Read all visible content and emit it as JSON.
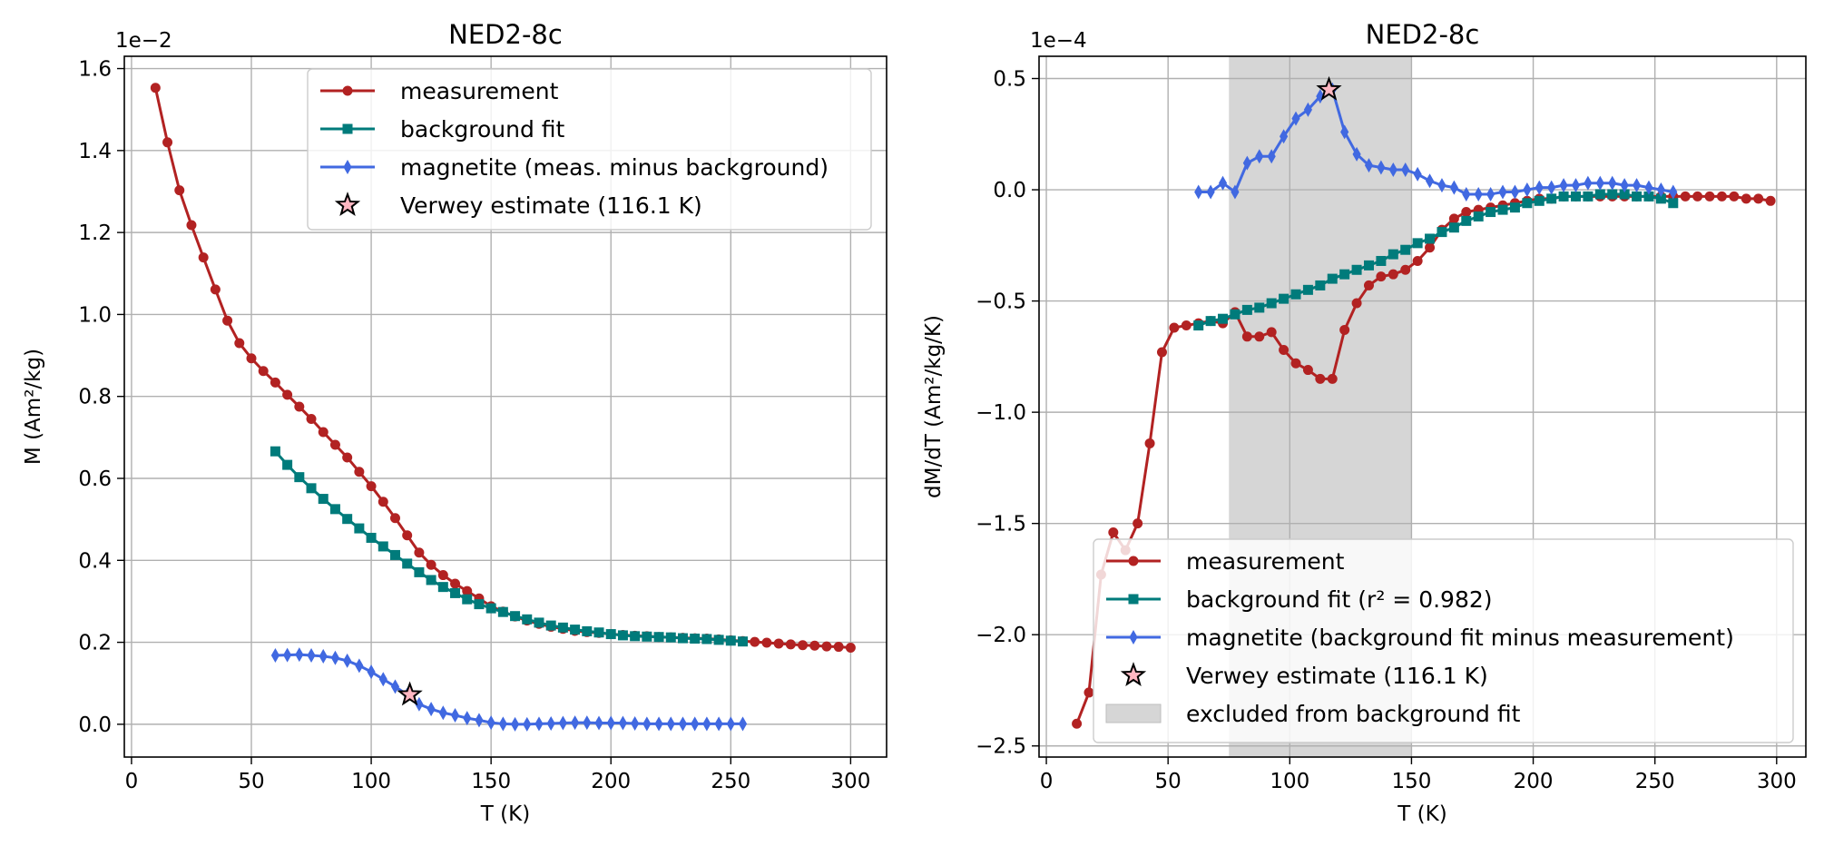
{
  "chart_data": [
    {
      "type": "line",
      "title": "NED2-8c",
      "xlabel": "T (K)",
      "ylabel": "M (Am²/kg)",
      "offset_text": "1e−2",
      "xlim": [
        -3,
        315
      ],
      "ylim": [
        -0.0008,
        0.0163
      ],
      "xticks": [
        0,
        50,
        100,
        150,
        200,
        250,
        300
      ],
      "xtick_labels": [
        "0",
        "50",
        "100",
        "150",
        "200",
        "250",
        "300"
      ],
      "yticks": [
        0,
        0.002,
        0.004,
        0.006,
        0.008,
        0.01,
        0.012,
        0.014,
        0.016
      ],
      "ytick_labels": [
        "0.0",
        "0.2",
        "0.4",
        "0.6",
        "0.8",
        "1.0",
        "1.2",
        "1.4",
        "1.6"
      ],
      "grid": true,
      "legend": {
        "location": "upper right"
      },
      "series": [
        {
          "name": "measurement",
          "color": "#b22222",
          "marker": "circle",
          "x": [
            10,
            15,
            20,
            25,
            30,
            35,
            40,
            45,
            50,
            55,
            60,
            65,
            70,
            75,
            80,
            85,
            90,
            95,
            100,
            105,
            110,
            115,
            120,
            125,
            130,
            135,
            140,
            145,
            150,
            155,
            160,
            165,
            170,
            175,
            180,
            185,
            190,
            195,
            200,
            205,
            210,
            215,
            220,
            225,
            230,
            235,
            240,
            245,
            250,
            255,
            260,
            265,
            270,
            275,
            280,
            285,
            290,
            295,
            300
          ],
          "y": [
            0.01553,
            0.0142,
            0.01303,
            0.01218,
            0.01139,
            0.01061,
            0.00985,
            0.0093,
            0.00893,
            0.00862,
            0.00834,
            0.00804,
            0.00775,
            0.00745,
            0.00713,
            0.00682,
            0.00651,
            0.00616,
            0.00581,
            0.00543,
            0.00503,
            0.00461,
            0.00419,
            0.00389,
            0.00364,
            0.00343,
            0.00325,
            0.00307,
            0.00288,
            0.00275,
            0.00263,
            0.00253,
            0.00245,
            0.00238,
            0.00233,
            0.00228,
            0.00225,
            0.00223,
            0.0022,
            0.00218,
            0.00216,
            0.00215,
            0.00213,
            0.00212,
            0.00211,
            0.0021,
            0.00209,
            0.00207,
            0.00205,
            0.00203,
            0.00201,
            0.00199,
            0.00197,
            0.00195,
            0.00193,
            0.00192,
            0.0019,
            0.00189,
            0.00187
          ]
        },
        {
          "name": "background fit",
          "color": "#007b7b",
          "marker": "square",
          "x": [
            60,
            65,
            70,
            75,
            80,
            85,
            90,
            95,
            100,
            105,
            110,
            115,
            120,
            125,
            130,
            135,
            140,
            145,
            150,
            155,
            160,
            165,
            170,
            175,
            180,
            185,
            190,
            195,
            200,
            205,
            210,
            215,
            220,
            225,
            230,
            235,
            240,
            245,
            250,
            255
          ],
          "y": [
            0.00666,
            0.00633,
            0.00603,
            0.00576,
            0.0055,
            0.00525,
            0.00501,
            0.00478,
            0.00455,
            0.00434,
            0.00413,
            0.00392,
            0.00371,
            0.00352,
            0.00335,
            0.0032,
            0.00305,
            0.00293,
            0.00283,
            0.00274,
            0.00264,
            0.00256,
            0.00248,
            0.00241,
            0.00236,
            0.00231,
            0.00227,
            0.00224,
            0.0022,
            0.00217,
            0.00215,
            0.00214,
            0.00213,
            0.00212,
            0.0021,
            0.00209,
            0.00208,
            0.00206,
            0.00204,
            0.00202
          ]
        },
        {
          "name": "magnetite (meas. minus background)",
          "color": "#4169e1",
          "marker": "thin_diamond",
          "x": [
            60,
            65,
            70,
            75,
            80,
            85,
            90,
            95,
            100,
            105,
            110,
            115,
            120,
            125,
            130,
            135,
            140,
            145,
            150,
            155,
            160,
            165,
            170,
            175,
            180,
            185,
            190,
            195,
            200,
            205,
            210,
            215,
            220,
            225,
            230,
            235,
            240,
            245,
            250,
            255
          ],
          "y": [
            0.00168,
            0.00169,
            0.0017,
            0.00168,
            0.00166,
            0.00162,
            0.00155,
            0.00143,
            0.00128,
            0.0011,
            0.00092,
            0.00072,
            0.00049,
            0.00037,
            0.00028,
            0.00022,
            0.00015,
            0.0001,
            4e-05,
            1e-05,
            0.0,
            0.0,
            1e-05,
            2e-05,
            3e-05,
            4e-05,
            4e-05,
            3e-05,
            3e-05,
            3e-05,
            2e-05,
            1e-05,
            1e-05,
            1e-05,
            1e-05,
            1e-05,
            1e-05,
            1e-05,
            1e-05,
            1e-05
          ]
        },
        {
          "name": "Verwey estimate (116.1 K)",
          "color": "#ffb6c1",
          "edgecolor": "#000000",
          "marker": "star",
          "x": [
            116.1
          ],
          "y": [
            0.00072
          ]
        }
      ]
    },
    {
      "type": "line",
      "title": "NED2-8c",
      "xlabel": "T (K)",
      "ylabel": "dM/dT (Am²/kg/K)",
      "offset_text": "1e−4",
      "xlim": [
        -3,
        312
      ],
      "ylim": [
        -2.55e-05,
        6e-06
      ],
      "xticks": [
        0,
        50,
        100,
        150,
        200,
        250,
        300
      ],
      "xtick_labels": [
        "0",
        "50",
        "100",
        "150",
        "200",
        "250",
        "300"
      ],
      "yticks": [
        -2.5e-05,
        -2e-05,
        -1.5e-05,
        -1e-05,
        -5e-06,
        0,
        5e-06
      ],
      "ytick_labels": [
        "−2.5",
        "−2.0",
        "−1.5",
        "−1.0",
        "−0.5",
        "0.0",
        "0.5"
      ],
      "grid": true,
      "legend": {
        "location": "lower right"
      },
      "shaded_span": {
        "x": [
          75,
          150
        ],
        "label": "excluded from background fit",
        "color": "#d6d6d6"
      },
      "series": [
        {
          "name": "measurement",
          "color": "#b22222",
          "marker": "circle",
          "x": [
            12.5,
            17.5,
            22.5,
            27.5,
            32.5,
            37.5,
            42.5,
            47.5,
            52.5,
            57.5,
            62.5,
            67.5,
            72.5,
            77.5,
            82.5,
            87.5,
            92.5,
            97.5,
            102.5,
            107.5,
            112.5,
            117.5,
            122.5,
            127.5,
            132.5,
            137.5,
            142.5,
            147.5,
            152.5,
            157.5,
            162.5,
            167.5,
            172.5,
            177.5,
            182.5,
            187.5,
            192.5,
            197.5,
            202.5,
            207.5,
            212.5,
            217.5,
            222.5,
            227.5,
            232.5,
            237.5,
            242.5,
            247.5,
            252.5,
            257.5,
            262.5,
            267.5,
            272.5,
            277.5,
            282.5,
            287.5,
            292.5,
            297.5
          ],
          "y": [
            -2.4e-05,
            -2.26e-05,
            -1.73e-05,
            -1.54e-05,
            -1.62e-05,
            -1.5e-05,
            -1.14e-05,
            -7.3e-06,
            -6.2e-06,
            -6.1e-06,
            -6e-06,
            -5.9e-06,
            -6e-06,
            -5.5e-06,
            -6.6e-06,
            -6.6e-06,
            -6.4e-06,
            -7.2e-06,
            -7.8e-06,
            -8.1e-06,
            -8.5e-06,
            -8.5e-06,
            -6.3e-06,
            -5.1e-06,
            -4.3e-06,
            -3.9e-06,
            -3.8e-06,
            -3.6e-06,
            -3.2e-06,
            -2.6e-06,
            -1.8e-06,
            -1.3e-06,
            -1e-06,
            -9e-07,
            -8e-07,
            -7e-07,
            -6e-07,
            -5e-07,
            -4e-07,
            -4e-07,
            -3e-07,
            -3e-07,
            -3e-07,
            -3e-07,
            -3e-07,
            -3e-07,
            -3e-07,
            -3e-07,
            -3e-07,
            -3e-07,
            -3e-07,
            -3e-07,
            -3e-07,
            -3e-07,
            -3e-07,
            -4e-07,
            -4e-07,
            -5e-07
          ]
        },
        {
          "name": "background fit (r² = 0.982)",
          "color": "#007b7b",
          "marker": "square",
          "x": [
            62.5,
            67.5,
            72.5,
            77.5,
            82.5,
            87.5,
            92.5,
            97.5,
            102.5,
            107.5,
            112.5,
            117.5,
            122.5,
            127.5,
            132.5,
            137.5,
            142.5,
            147.5,
            152.5,
            157.5,
            162.5,
            167.5,
            172.5,
            177.5,
            182.5,
            187.5,
            192.5,
            197.5,
            202.5,
            207.5,
            212.5,
            217.5,
            222.5,
            227.5,
            232.5,
            237.5,
            242.5,
            247.5,
            252.5,
            257.5
          ],
          "y": [
            -6.1e-06,
            -5.9e-06,
            -5.8e-06,
            -5.6e-06,
            -5.4e-06,
            -5.3e-06,
            -5.1e-06,
            -4.9e-06,
            -4.7e-06,
            -4.5e-06,
            -4.3e-06,
            -4e-06,
            -3.8e-06,
            -3.6e-06,
            -3.4e-06,
            -3.2e-06,
            -2.9e-06,
            -2.7e-06,
            -2.4e-06,
            -2.2e-06,
            -1.9e-06,
            -1.7e-06,
            -1.4e-06,
            -1.2e-06,
            -1e-06,
            -9e-07,
            -8e-07,
            -6e-07,
            -5e-07,
            -4e-07,
            -3e-07,
            -3e-07,
            -3e-07,
            -2e-07,
            -2e-07,
            -2e-07,
            -3e-07,
            -3e-07,
            -4e-07,
            -6e-07
          ]
        },
        {
          "name": "magnetite (background fit minus measurement)",
          "color": "#4169e1",
          "marker": "thin_diamond",
          "x": [
            62.5,
            67.5,
            72.5,
            77.5,
            82.5,
            87.5,
            92.5,
            97.5,
            102.5,
            107.5,
            112.5,
            117.5,
            122.5,
            127.5,
            132.5,
            137.5,
            142.5,
            147.5,
            152.5,
            157.5,
            162.5,
            167.5,
            172.5,
            177.5,
            182.5,
            187.5,
            192.5,
            197.5,
            202.5,
            207.5,
            212.5,
            217.5,
            222.5,
            227.5,
            232.5,
            237.5,
            242.5,
            247.5,
            252.5,
            257.5
          ],
          "y": [
            -1e-07,
            -1e-07,
            3e-07,
            -1e-07,
            1.2e-06,
            1.5e-06,
            1.5e-06,
            2.4e-06,
            3.2e-06,
            3.6e-06,
            4.2e-06,
            4.5e-06,
            2.6e-06,
            1.6e-06,
            1.1e-06,
            1e-06,
            9e-07,
            9e-07,
            7e-07,
            4e-07,
            2e-07,
            1e-07,
            -2e-07,
            -2e-07,
            -2e-07,
            -1e-07,
            -1e-07,
            0.0,
            1e-07,
            1e-07,
            2e-07,
            2e-07,
            3e-07,
            3e-07,
            3e-07,
            2e-07,
            2e-07,
            1e-07,
            0.0,
            -1e-07
          ]
        },
        {
          "name": "Verwey estimate (116.1 K)",
          "color": "#ffb6c1",
          "edgecolor": "#000000",
          "marker": "star",
          "x": [
            116.1
          ],
          "y": [
            4.5e-06
          ]
        }
      ]
    }
  ]
}
